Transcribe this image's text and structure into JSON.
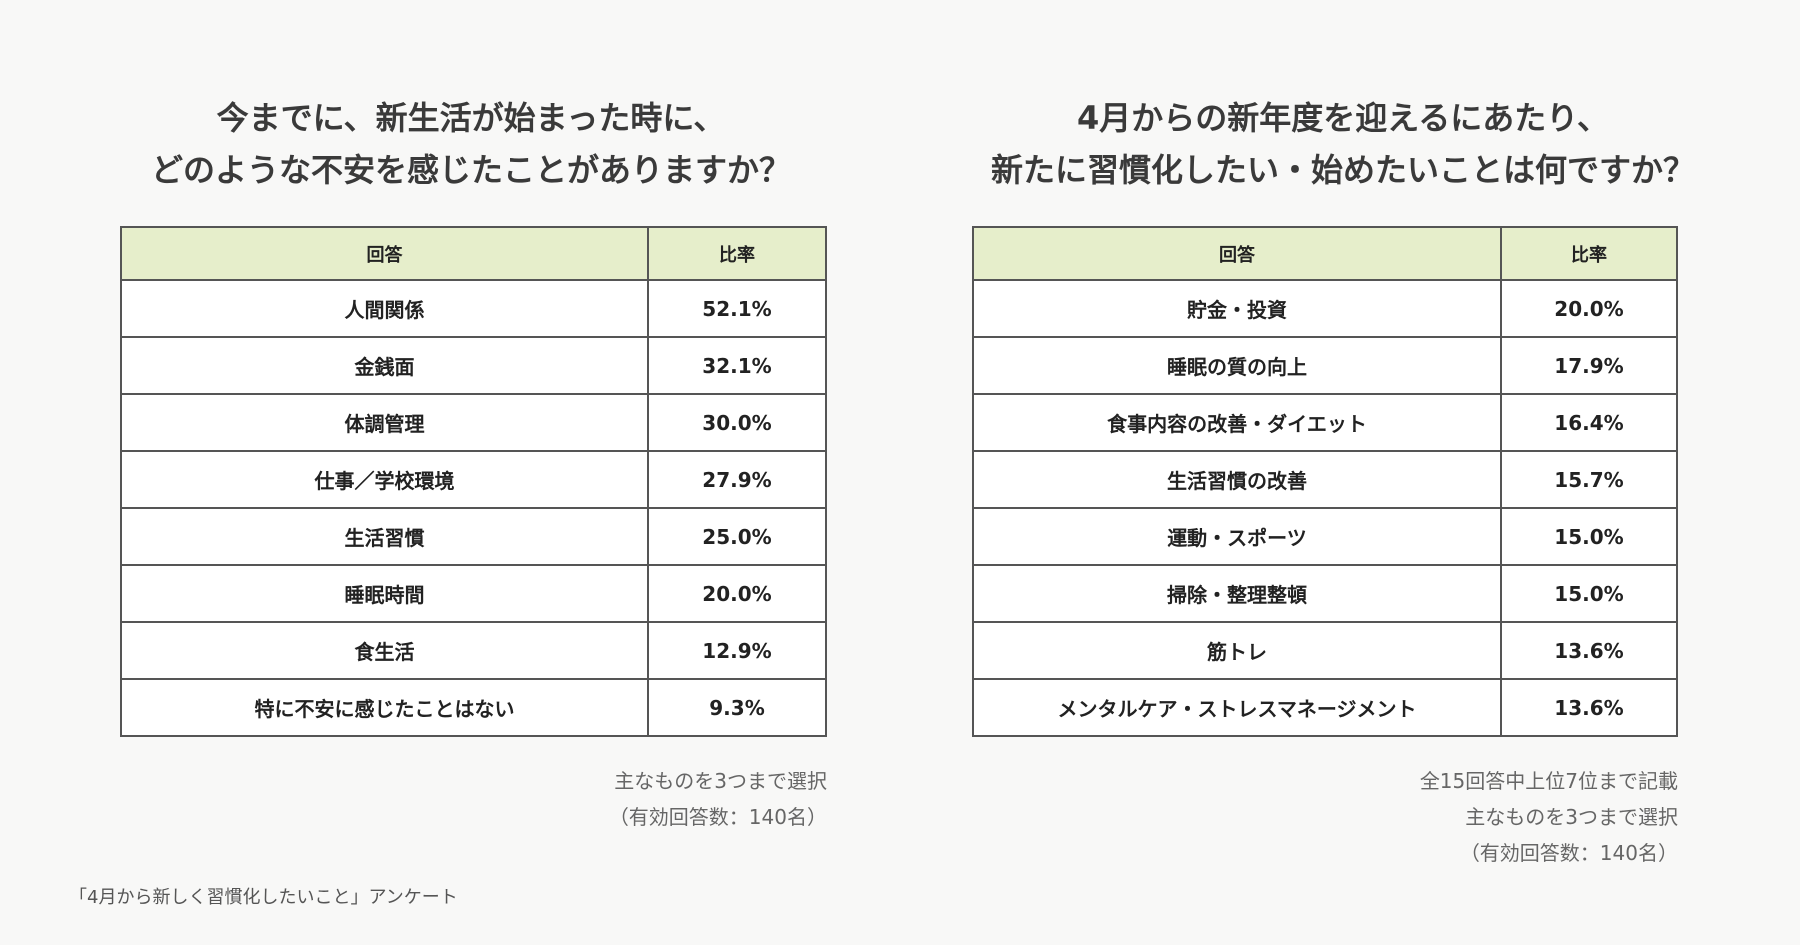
{
  "left": {
    "title": [
      "今までに、新生活が始まった時に、",
      "どのような不安を感じたことがありますか？"
    ],
    "table": {
      "header": [
        "回答",
        "比率"
      ],
      "rows": [
        [
          "人間関係",
          "52.1%"
        ],
        [
          "金銭面",
          "32.1%"
        ],
        [
          "体調管理",
          "30.0%"
        ],
        [
          "仕事／学校環境",
          "27.9%"
        ],
        [
          "生活習慣",
          "25.0%"
        ],
        [
          "睡眠時間",
          "20.0%"
        ],
        [
          "食生活",
          "12.9%"
        ],
        [
          "特に不安に感じたことはない",
          "9.3%"
        ]
      ]
    },
    "notes": [
      "主なものを3つまで選択",
      "（有効回答数：140名）"
    ]
  },
  "right": {
    "title": [
      "4月からの新年度を迎えるにあたり、",
      "新たに習慣化したい・始めたいことは何ですか？"
    ],
    "table": {
      "header": [
        "回答",
        "比率"
      ],
      "rows": [
        [
          "貯金・投資",
          "20.0%"
        ],
        [
          "睡眠の質の向上",
          "17.9%"
        ],
        [
          "食事内容の改善・ダイエット",
          "16.4%"
        ],
        [
          "生活習慣の改善",
          "15.7%"
        ],
        [
          "運動・スポーツ",
          "15.0%"
        ],
        [
          "掃除・整理整頓",
          "15.0%"
        ],
        [
          "筋トレ",
          "13.6%"
        ],
        [
          "メンタルケア・ストレスマネージメント",
          "13.6%"
        ]
      ]
    },
    "notes": [
      "全15回答中上位7位まで記載",
      "主なものを3つまで選択",
      "（有効回答数：140名）"
    ]
  },
  "footer": "「4月から新しく習慣化したいこと」アンケート"
}
